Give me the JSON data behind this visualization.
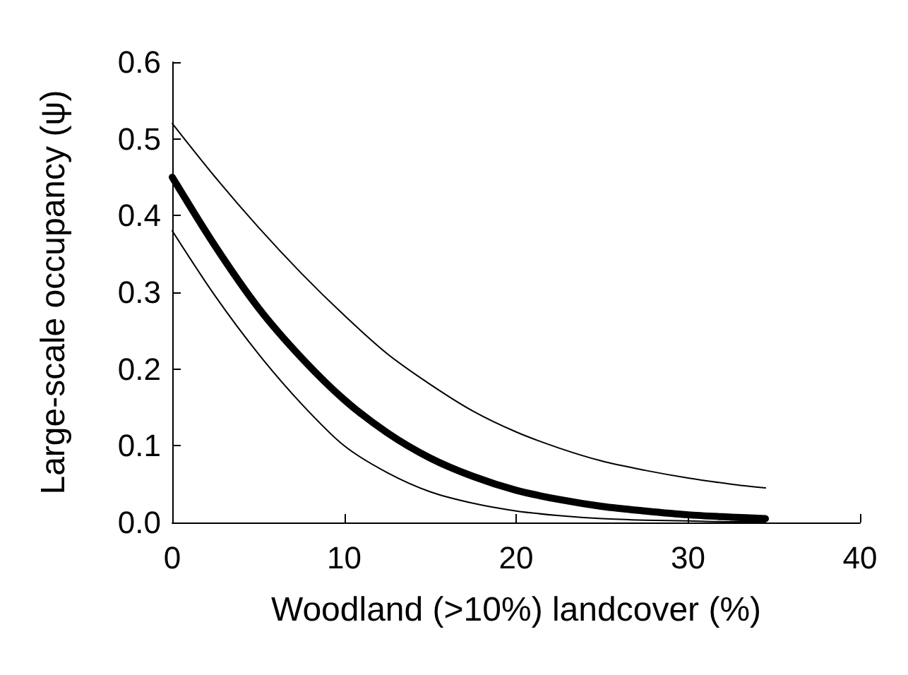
{
  "chart_data": {
    "type": "line",
    "xlabel": "Woodland (>10%) landcover (%)",
    "ylabel": "Large-scale occupancy (ψ)",
    "xlim": [
      0,
      40
    ],
    "xticks": [
      0,
      10,
      20,
      30,
      40
    ],
    "ylim": [
      0,
      0.6
    ],
    "yticks": [
      {
        "value": 0,
        "label": "0.0"
      },
      {
        "value": 0.1,
        "label": "0.1"
      },
      {
        "value": 0.2,
        "label": "0.2"
      },
      {
        "value": 0.3,
        "label": "0.3"
      },
      {
        "value": 0.4,
        "label": "0.4"
      },
      {
        "value": 0.5,
        "label": "0.5"
      },
      {
        "value": 0.6,
        "label": "0.6"
      }
    ],
    "grid": false,
    "marker": "none",
    "line_style": "solid",
    "series": [
      {
        "color": "#000000",
        "x": [
          0,
          2.5,
          5,
          7.5,
          10,
          12.5,
          15,
          17.5,
          20,
          22.5,
          25,
          27.5,
          30,
          32.5,
          34.5
        ],
        "values": [
          0.45,
          0.36,
          0.28,
          0.215,
          0.16,
          0.117,
          0.084,
          0.06,
          0.042,
          0.03,
          0.021,
          0.015,
          0.01,
          0.007,
          0.005
        ]
      },
      {
        "color": "#000000",
        "x": [
          0,
          2.5,
          5,
          7.5,
          10,
          12.5,
          15,
          17.5,
          20,
          22.5,
          25,
          27.5,
          30,
          32.5,
          34.5
        ],
        "values": [
          0.52,
          0.45,
          0.385,
          0.325,
          0.27,
          0.22,
          0.18,
          0.145,
          0.118,
          0.097,
          0.08,
          0.068,
          0.058,
          0.05,
          0.045
        ]
      },
      {
        "color": "#000000",
        "x": [
          0,
          2.5,
          5,
          7.5,
          10,
          12.5,
          15,
          17.5,
          20,
          22.5,
          25,
          27.5,
          30,
          32.5,
          34.5
        ],
        "values": [
          0.38,
          0.295,
          0.22,
          0.155,
          0.1,
          0.065,
          0.04,
          0.025,
          0.015,
          0.009,
          0.005,
          0.003,
          0.002,
          0.001,
          0.001
        ]
      }
    ]
  }
}
